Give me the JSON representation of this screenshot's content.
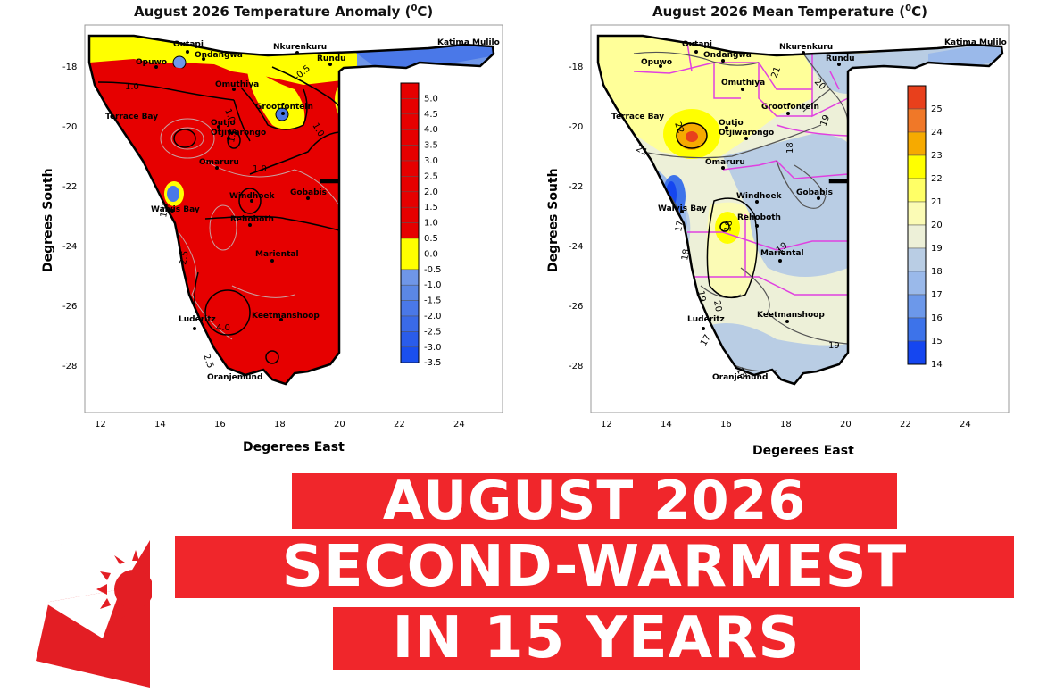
{
  "left_map": {
    "title": "August 2026 Temperature Anomaly (",
    "title_sup": "0",
    "title_end": "C)",
    "ylabel": "Degrees South",
    "xlabel": "Degerees East",
    "x_ticks": [
      "12",
      "14",
      "16",
      "18",
      "20",
      "22",
      "24"
    ],
    "y_ticks": [
      "-18",
      "-20",
      "-22",
      "-24",
      "-26",
      "-28"
    ],
    "legend_labels": [
      "5.0",
      "4.5",
      "4.0",
      "3.5",
      "3.0",
      "2.5",
      "2.0",
      "1.5",
      "1.0",
      "0.5",
      "0.0",
      "-0.5",
      "-1.0",
      "-1.5",
      "-2.0",
      "-2.5",
      "-3.0",
      "-3.5"
    ],
    "legend_colors": [
      "#e60000",
      "#e60000",
      "#e60000",
      "#e60000",
      "#e60000",
      "#e60000",
      "#e60000",
      "#e60000",
      "#e60000",
      "#e60000",
      "#ffff00",
      "#ffff00",
      "#6f96e8",
      "#5b87e5",
      "#4a78e8",
      "#3a6ae8",
      "#2a5cea",
      "#1a4fee"
    ],
    "contour_labels": [
      "1.0",
      "1.0",
      "1.0",
      "1.0",
      "-0.5",
      "1.0",
      "2.5",
      "4.0",
      "2.5",
      "1.0"
    ]
  },
  "right_map": {
    "title": "August 2026 Mean Temperature (",
    "title_sup": "0",
    "title_end": "C)",
    "ylabel": "Degrees South",
    "xlabel": "Degerees East",
    "x_ticks": [
      "12",
      "14",
      "16",
      "18",
      "20",
      "22",
      "24"
    ],
    "y_ticks": [
      "-18",
      "-20",
      "-22",
      "-24",
      "-26",
      "-28"
    ],
    "legend_labels": [
      "25",
      "24",
      "23",
      "22",
      "21",
      "20",
      "19",
      "18",
      "17",
      "16",
      "15",
      "14"
    ],
    "legend_colors": [
      "#e8401c",
      "#f07828",
      "#f6aa00",
      "#ffff00",
      "#ffff66",
      "#fbfbb5",
      "#edf0d8",
      "#b9cde4",
      "#9ab9ea",
      "#6c98ea",
      "#3d73ea",
      "#1546f0"
    ],
    "contour_labels": [
      "21",
      "20",
      "22",
      "21",
      "19",
      "18",
      "18",
      "17",
      "17",
      "19",
      "18",
      "20",
      "19",
      "19",
      "18"
    ]
  },
  "towns": [
    "Outapi",
    "Ondangwa",
    "Opuwo",
    "Nkurenkuru",
    "Rundu",
    "Katima Mulilo",
    "Omuthiya",
    "Terrace Bay",
    "Grootfontein",
    "Outjo",
    "Otjiwarongo",
    "Omaruru",
    "Gobabis",
    "Windhoek",
    "Walvis Bay",
    "Rehoboth",
    "Mariental",
    "Keetmanshoop",
    "Luderitz",
    "Oranjemund"
  ],
  "banner": {
    "line1": "AUGUST 2026",
    "line2": "SECOND-WARMEST",
    "line3": "IN 15 YEARS"
  },
  "colors": {
    "banner_red": "#f0262b",
    "logo_red": "#e31e24"
  }
}
